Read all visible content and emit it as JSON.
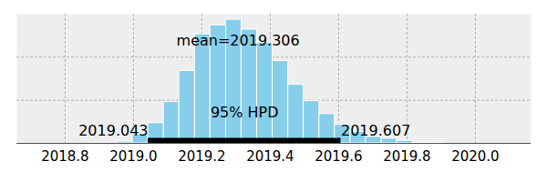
{
  "chart_data": {
    "type": "histogram",
    "bins": [
      2018.952,
      2018.998,
      2019.043,
      2019.089,
      2019.134,
      2019.18,
      2019.225,
      2019.271,
      2019.316,
      2019.362,
      2019.407,
      2019.453,
      2019.498,
      2019.544,
      2019.589,
      2019.635,
      2019.68,
      2019.726,
      2019.771,
      2019.817,
      2019.862,
      2019.908
    ],
    "values": [
      0.04,
      0.21,
      0.47,
      0.96,
      1.68,
      2.53,
      2.74,
      2.87,
      2.64,
      2.34,
      1.91,
      1.36,
      0.98,
      0.68,
      0.43,
      0.26,
      0.15,
      0.11,
      0.06,
      0.02,
      0.01
    ],
    "color": "#87ceeb",
    "xlim": [
      2018.659,
      2020.163
    ],
    "xticks": [
      2018.8,
      {
        "value": 2019.0,
        "label": "2019.0"
      },
      2019.2,
      2019.4,
      2019.6,
      2019.8,
      {
        "value": 2020.0,
        "label": "2020.0"
      }
    ],
    "ylim": [
      0,
      3
    ],
    "yticks": [
      1,
      2
    ],
    "grid": true,
    "tick_labels": "x",
    "mean": 2019.306,
    "mean_label": "mean=2019.306",
    "hpd": [
      2019.043,
      2019.607
    ],
    "hpd_label": "95% HPD"
  }
}
